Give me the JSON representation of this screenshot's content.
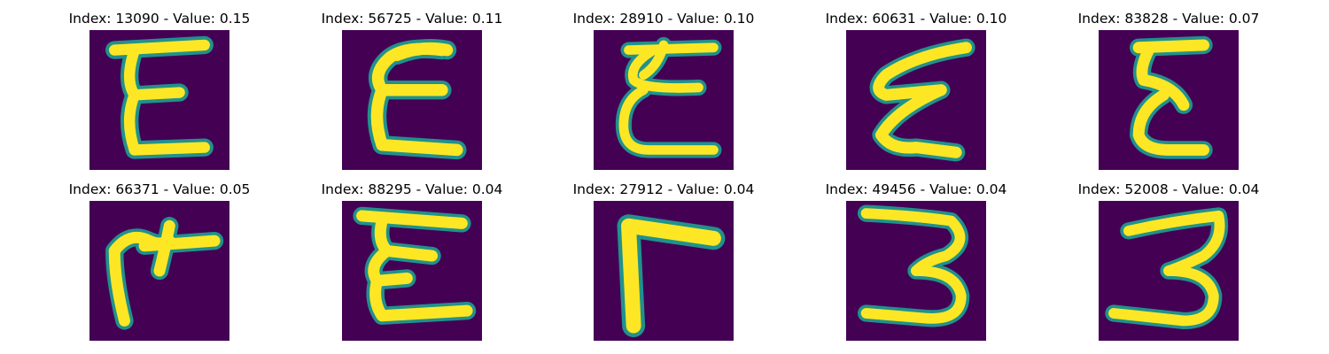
{
  "figure": {
    "background": "#ffffff",
    "image_background": "#440154",
    "colormap": [
      "#440154",
      "#3b528b",
      "#21918c",
      "#5ec962",
      "#fde725"
    ],
    "items": [
      {
        "title": "Index: 13090 - Value: 0.15",
        "glyph": "E"
      },
      {
        "title": "Index: 56725 - Value: 0.11",
        "glyph": "E"
      },
      {
        "title": "Index: 28910 - Value: 0.10",
        "glyph": "E"
      },
      {
        "title": "Index: 60631 - Value: 0.10",
        "glyph": "E"
      },
      {
        "title": "Index: 83828 - Value: 0.07",
        "glyph": "E"
      },
      {
        "title": "Index: 66371 - Value: 0.05",
        "glyph": "M"
      },
      {
        "title": "Index: 88295 - Value: 0.04",
        "glyph": "E"
      },
      {
        "title": "Index: 27912 - Value: 0.04",
        "glyph": "L"
      },
      {
        "title": "Index: 49456 - Value: 0.04",
        "glyph": "3"
      },
      {
        "title": "Index: 52008 - Value: 0.04",
        "glyph": "3"
      }
    ]
  }
}
